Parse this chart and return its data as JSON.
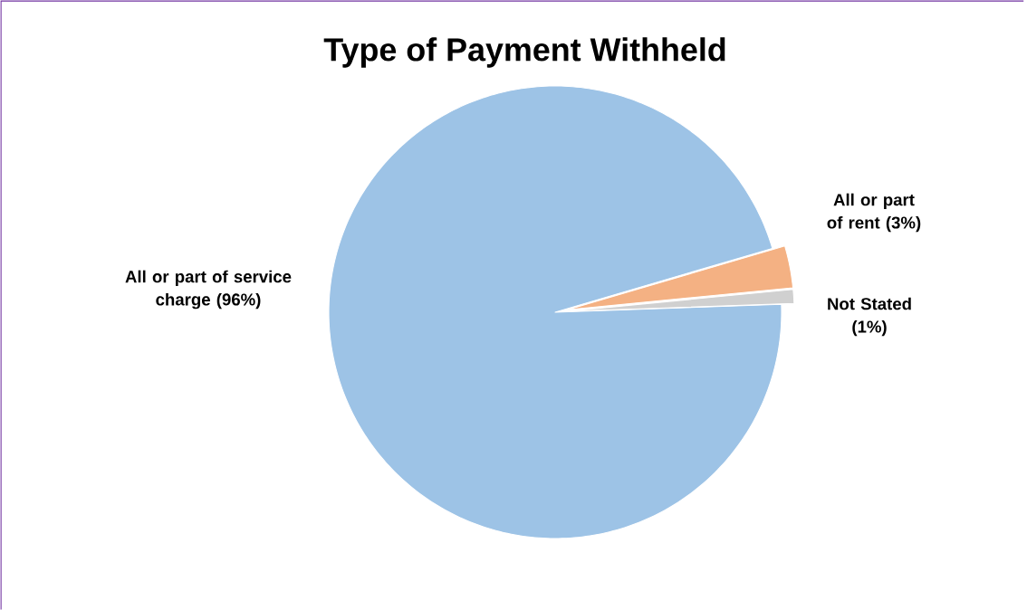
{
  "chart_data": {
    "type": "pie",
    "title": "Type of Payment Withheld",
    "categories": [
      "All or part of service charge (96%)",
      "All or part of rent (3%)",
      "Not Stated (1%)"
    ],
    "values": [
      96,
      3,
      1
    ],
    "colors": [
      "#9dc3e6",
      "#f4b183",
      "#d0d0d0"
    ]
  }
}
